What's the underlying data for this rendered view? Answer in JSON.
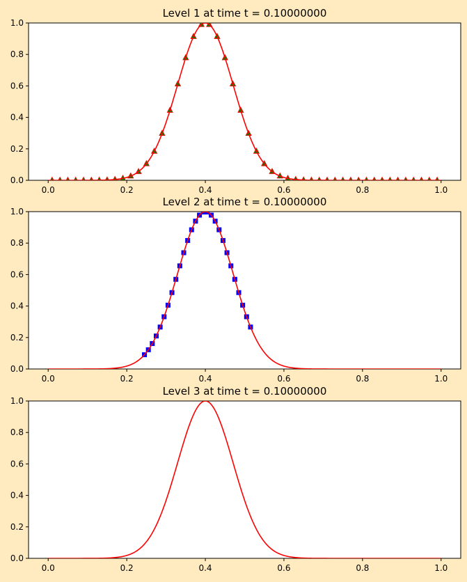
{
  "colors": {
    "background": "#ffebbf",
    "exact_line": "#ff0000",
    "level1_marker": "#007f00",
    "level2_marker": "#0000ff"
  },
  "chart_data": [
    {
      "type": "line",
      "title": "Level 1 at time t =      0.10000000",
      "xlabel": "",
      "ylabel": "",
      "xlim": [
        -0.05,
        1.05
      ],
      "ylim": [
        0,
        1
      ],
      "xticks": [
        "0.0",
        "0.2",
        "0.4",
        "0.6",
        "0.8",
        "1.0"
      ],
      "yticks": [
        "0.0",
        "0.2",
        "0.4",
        "0.6",
        "0.8",
        "1.0"
      ],
      "grid": false,
      "series": [
        {
          "kind": "curve",
          "marker": "none",
          "color": "#ff0000",
          "formula": "exp(-((x-0.4)/0.1)^2)",
          "x_range": [
            0,
            1
          ]
        },
        {
          "kind": "points",
          "marker": "triangle",
          "color": "#007f00",
          "edge_color": "#ff0000",
          "formula": "exp(-((x-0.4)/0.1)^2)",
          "x_start": 0.01,
          "x_end": 0.99,
          "dx": 0.02
        }
      ]
    },
    {
      "type": "line",
      "title": "Level 2 at time t =      0.10000000",
      "xlabel": "",
      "ylabel": "",
      "xlim": [
        -0.05,
        1.05
      ],
      "ylim": [
        0,
        1
      ],
      "xticks": [
        "0.0",
        "0.2",
        "0.4",
        "0.6",
        "0.8",
        "1.0"
      ],
      "yticks": [
        "0.0",
        "0.2",
        "0.4",
        "0.6",
        "0.8",
        "1.0"
      ],
      "grid": false,
      "series": [
        {
          "kind": "curve",
          "marker": "none",
          "color": "#ff0000",
          "formula": "exp(-((x-0.4)/0.1)^2)",
          "x_range": [
            0,
            1
          ]
        },
        {
          "kind": "points",
          "marker": "square",
          "color": "#0000ff",
          "formula": "exp(-((x-0.4)/0.1)^2)",
          "x_start": 0.245,
          "x_end": 0.515,
          "dx": 0.01
        }
      ]
    },
    {
      "type": "line",
      "title": "Level 3 at time t =      0.10000000",
      "xlabel": "",
      "ylabel": "",
      "xlim": [
        -0.05,
        1.05
      ],
      "ylim": [
        0,
        1
      ],
      "xticks": [
        "0.0",
        "0.2",
        "0.4",
        "0.6",
        "0.8",
        "1.0"
      ],
      "yticks": [
        "0.0",
        "0.2",
        "0.4",
        "0.6",
        "0.8",
        "1.0"
      ],
      "grid": false,
      "series": [
        {
          "kind": "curve",
          "marker": "none",
          "color": "#ff0000",
          "formula": "exp(-((x-0.4)/0.1)^2)",
          "x_range": [
            0,
            1
          ]
        }
      ]
    }
  ]
}
